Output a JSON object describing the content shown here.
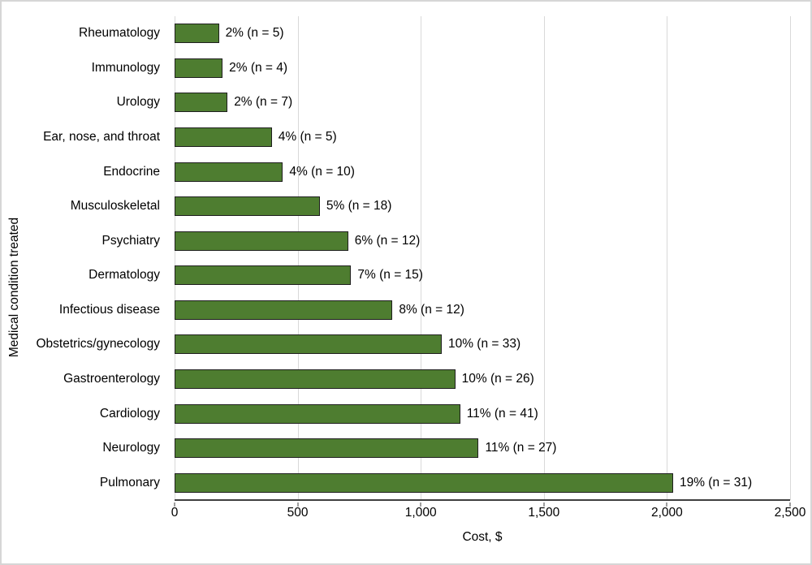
{
  "chart_data": {
    "type": "bar",
    "orientation": "horizontal",
    "order": "top-to-bottom",
    "title": "",
    "xlabel": "Cost, $",
    "ylabel": "Medical condition treated",
    "xlim": [
      0,
      2500
    ],
    "xtick_values": [
      0,
      500,
      1000,
      1500,
      2000,
      2500
    ],
    "xtick_labels": [
      "0",
      "500",
      "1,000",
      "1,500",
      "2,000",
      "2,500"
    ],
    "grid": true,
    "legend": false,
    "bar_color": "#4e7d30",
    "bar_border_color": "#1f1f1f",
    "gridline_color": "#d9d9d9",
    "axis_line_color": "#3f3f3f",
    "categories": [
      "Rheumatology",
      "Immunology",
      "Urology",
      "Ear, nose, and throat",
      "Endocrine",
      "Musculoskeletal",
      "Psychiatry",
      "Dermatology",
      "Infectious disease",
      "Obstetrics/gynecology",
      "Gastroenterology",
      "Cardiology",
      "Neurology",
      "Pulmonary"
    ],
    "values": [
      180,
      195,
      215,
      395,
      440,
      590,
      705,
      717,
      885,
      1085,
      1140,
      1160,
      1235,
      2025
    ],
    "data_labels": [
      "2% (n = 5)",
      "2% (n = 4)",
      "2% (n = 7)",
      "4% (n = 5)",
      "4% (n = 10)",
      "5% (n = 18)",
      "6% (n = 12)",
      "7% (n = 15)",
      "8% (n = 12)",
      "10% (n = 33)",
      "10% (n = 26)",
      "11% (n = 41)",
      "11% (n = 27)",
      "19% (n = 31)"
    ],
    "percentages": [
      2,
      2,
      2,
      4,
      4,
      5,
      6,
      7,
      8,
      10,
      10,
      11,
      11,
      19
    ],
    "n_values": [
      5,
      4,
      7,
      5,
      10,
      18,
      12,
      15,
      12,
      33,
      26,
      41,
      27,
      31
    ]
  }
}
